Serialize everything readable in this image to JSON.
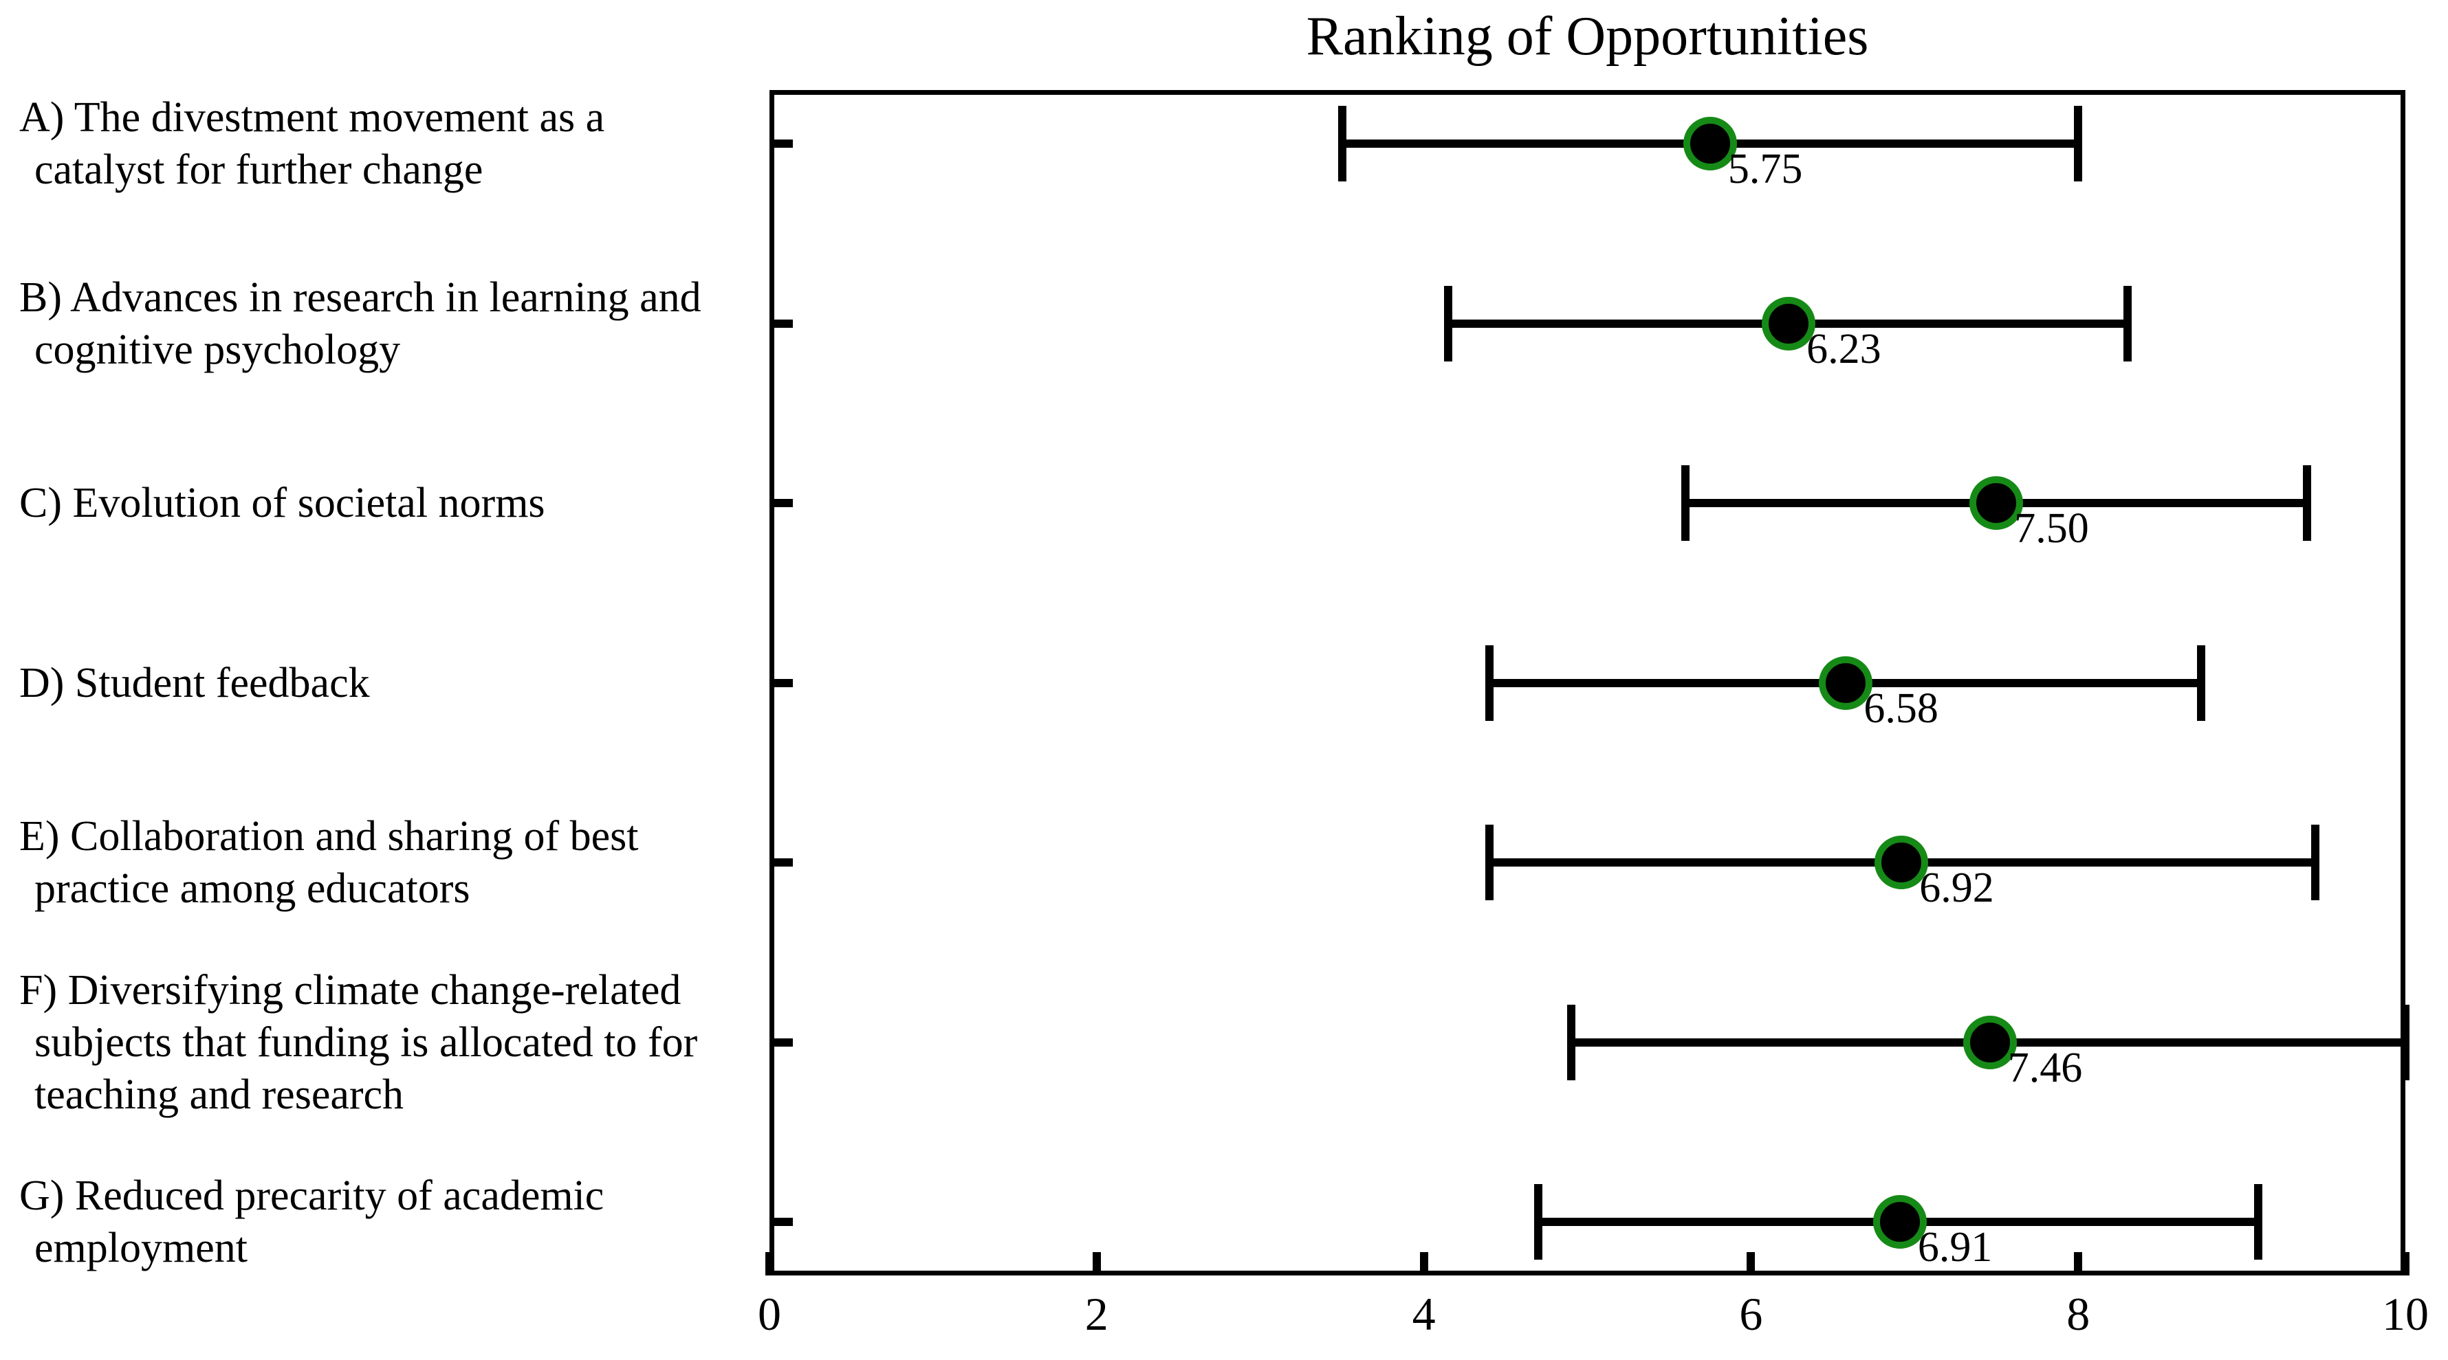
{
  "title": "Ranking of Opportunities",
  "colors": {
    "marker_fill": "#000000",
    "marker_edge": "#168a16",
    "error_bar": "#000000",
    "background": "#ffffff",
    "text": "#000000"
  },
  "chart_data": {
    "type": "scatter",
    "orientation": "horizontal",
    "title": "Ranking of Opportunities",
    "xlabel": "",
    "ylabel": "",
    "xlim": [
      0,
      10
    ],
    "x_ticks": [
      "0",
      "2",
      "4",
      "6",
      "8",
      "10"
    ],
    "x_tick_values": [
      0,
      2,
      4,
      6,
      8,
      10
    ],
    "grid": false,
    "legend_position": "none",
    "categories": [
      {
        "id": "A",
        "lines": [
          "A) The divestment movement as a",
          "catalyst for further change"
        ],
        "text": "A) The divestment movement as a catalyst for further change"
      },
      {
        "id": "B",
        "lines": [
          "B) Advances in research in learning and",
          "cognitive psychology"
        ],
        "text": "B) Advances in research in learning and cognitive psychology"
      },
      {
        "id": "C",
        "lines": [
          "C) Evolution of societal norms"
        ],
        "text": "C) Evolution of societal norms"
      },
      {
        "id": "D",
        "lines": [
          "D) Student feedback"
        ],
        "text": "D) Student feedback"
      },
      {
        "id": "E",
        "lines": [
          "E) Collaboration and sharing of best",
          "practice among educators"
        ],
        "text": "E) Collaboration and sharing of best practice among educators"
      },
      {
        "id": "F",
        "lines": [
          "F) Diversifying climate change-related",
          "subjects that funding is allocated to for",
          "teaching and research"
        ],
        "text": "F) Diversifying climate change-related subjects that funding is allocated to for teaching and research"
      },
      {
        "id": "G",
        "lines": [
          "G) Reduced precarity of academic",
          "employment"
        ],
        "text": "G) Reduced precarity of academic employment"
      }
    ],
    "series": [
      {
        "values": [
          5.75,
          6.23,
          7.5,
          6.58,
          6.92,
          7.46,
          6.91
        ],
        "value_labels": [
          "5.75",
          "6.23",
          "7.50",
          "6.58",
          "6.92",
          "7.46",
          "6.91"
        ],
        "error_low": [
          3.5,
          4.15,
          5.6,
          4.4,
          4.4,
          4.9,
          4.7
        ],
        "error_high": [
          8.0,
          8.3,
          9.4,
          8.75,
          9.45,
          10.0,
          9.1
        ]
      }
    ]
  }
}
